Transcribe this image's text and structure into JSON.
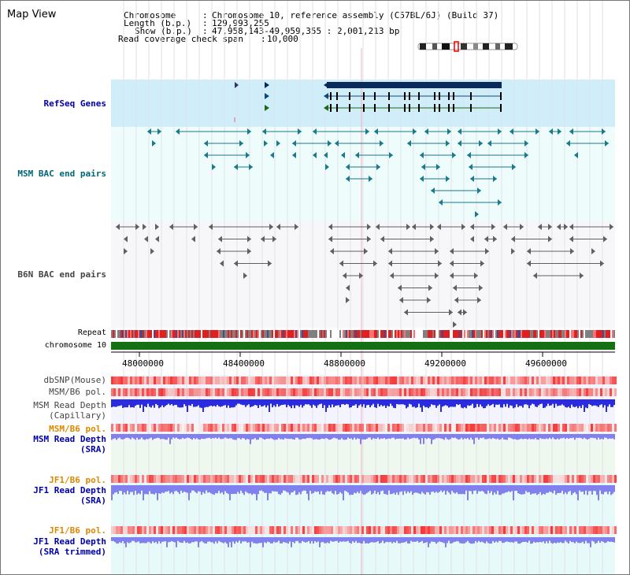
{
  "title": "Map View",
  "header": {
    "chromosome_label": "Chromosome",
    "chromosome_value": "Chromosome 10, reference assembly (C57BL/6J) (Build 37)",
    "length_label": "Length (b.p.)",
    "length_value": "129,993,255",
    "show_label": "Show (b.p.)",
    "show_value": "47,958,143-49,959,355 : 2,001,213 bp",
    "coverage_label": "Read coverage check span",
    "coverage_value": "10,000"
  },
  "tracks": {
    "refseq": "RefSeq Genes",
    "msm_bac": "MSM BAC end pairs",
    "b6n_bac": "B6N BAC end pairs",
    "repeat": "Repeat",
    "chromosome": "chromosome 10",
    "dbsnp": "dbSNP(Mouse)",
    "msm_b6_pol_1": "MSM/B6 pol.",
    "msm_depth_cap_1": "MSM Read Depth",
    "msm_depth_cap_2": "(Capillary)",
    "msm_b6_pol_2": "MSM/B6 pol.",
    "msm_depth_sra_1": "MSM Read Depth",
    "msm_depth_sra_2": "(SRA)",
    "jf1_b6_pol_1": "JF1/B6 pol.",
    "jf1_depth_sra_1": "JF1 Read Depth",
    "jf1_depth_sra_2": "(SRA)",
    "jf1_b6_pol_2": "JF1/B6 pol.",
    "jf1_depth_trim_1": "JF1 Read Depth",
    "jf1_depth_trim_2": "(SRA trimmed)"
  },
  "axis": {
    "ticks": [
      "48000000",
      "48400000",
      "48800000",
      "49200000",
      "49600000"
    ]
  },
  "colors": {
    "refseq_bg": "#cfeefa",
    "msm_bg": "#eefcfc",
    "b6n_bg": "#f7f7fa",
    "gene_dark": "#0a2a5a",
    "gene_line": "#1a6a1a",
    "msm_feature": "#1a7a8a",
    "b6n_feature": "#606060",
    "chromosome_bar": "#137013",
    "depth_blue": "#2a2ae0",
    "depth_light": "#8080ee",
    "label_blue": "#0000aa",
    "label_teal": "#006677",
    "label_orange": "#dd8800"
  }
}
